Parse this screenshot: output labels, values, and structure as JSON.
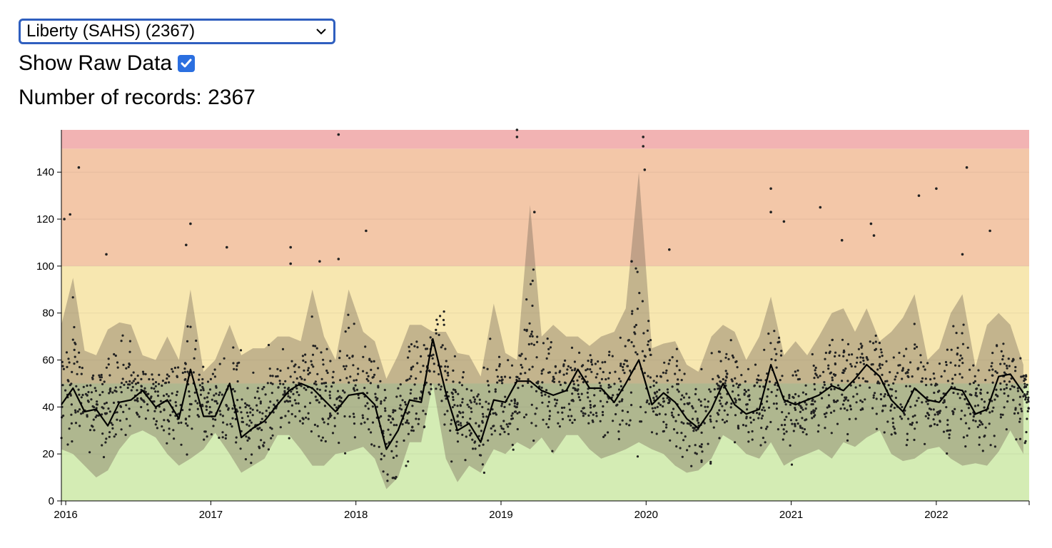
{
  "controls": {
    "site_select_value": "Liberty (SAHS) (2367)",
    "show_raw_label": "Show Raw Data",
    "show_raw_checked": true,
    "records_label": "Number of records:",
    "records_count": "2367"
  },
  "colors": {
    "band_green": "#d4ecb4",
    "band_yellow": "#f7e7b0",
    "band_orange": "#f3c7a8",
    "band_red": "#f2b3b3",
    "range_fill": "#7d6e5e",
    "line": "#000000",
    "points": "#222222",
    "select_border": "#2f5fbf",
    "checkbox": "#2b6fe0"
  },
  "icons": {
    "dropdown": "chevron-down-icon",
    "checkbox": "checkmark-icon"
  },
  "chart_data": {
    "type": "area",
    "xlabel": "",
    "ylabel": "",
    "xlim": [
      2015.97,
      2022.64
    ],
    "ylim": [
      0,
      158
    ],
    "xticks": [
      "2016",
      "2017",
      "2018",
      "2019",
      "2020",
      "2021",
      "2022"
    ],
    "yticks": [
      0,
      20,
      40,
      60,
      80,
      100,
      120,
      140
    ],
    "bands": [
      {
        "from": 0,
        "to": 50,
        "color": "#d4ecb4"
      },
      {
        "from": 50,
        "to": 100,
        "color": "#f7e7b0"
      },
      {
        "from": 100,
        "to": 150,
        "color": "#f3c7a8"
      },
      {
        "from": 150,
        "to": 158,
        "color": "#f2b3b3"
      }
    ],
    "series": [
      {
        "x": [
          2015.97,
          2016.05,
          2016.13,
          2016.21,
          2016.29,
          2016.37,
          2016.45,
          2016.53,
          2016.62,
          2016.7,
          2016.78,
          2016.86,
          2016.95,
          2017.03,
          2017.13,
          2017.21,
          2017.29,
          2017.37,
          2017.46,
          2017.54,
          2017.62,
          2017.7,
          2017.78,
          2017.86,
          2017.95,
          2018.05,
          2018.13,
          2018.21,
          2018.29,
          2018.37,
          2018.45,
          2018.53,
          2018.62,
          2018.7,
          2018.78,
          2018.86,
          2018.95,
          2019.03,
          2019.11,
          2019.2,
          2019.28,
          2019.36,
          2019.45,
          2019.53,
          2019.61,
          2019.69,
          2019.78,
          2019.86,
          2019.95,
          2020.04,
          2020.12,
          2020.2,
          2020.28,
          2020.36,
          2020.45,
          2020.53,
          2020.61,
          2020.69,
          2020.78,
          2020.86,
          2020.95,
          2021.03,
          2021.11,
          2021.19,
          2021.28,
          2021.36,
          2021.44,
          2021.52,
          2021.61,
          2021.69,
          2021.77,
          2021.85,
          2021.94,
          2022.02,
          2022.1,
          2022.18,
          2022.27,
          2022.35,
          2022.43,
          2022.51,
          2022.6
        ],
        "mean": [
          41,
          48,
          38,
          39,
          32,
          42,
          43,
          47,
          40,
          43,
          35,
          56,
          36,
          36,
          50,
          27,
          31,
          34,
          41,
          47,
          50,
          48,
          43,
          38,
          45,
          46,
          41,
          22,
          30,
          43,
          42,
          69,
          46,
          30,
          33,
          25,
          43,
          42,
          51,
          51,
          47,
          45,
          47,
          56,
          48,
          48,
          42,
          50,
          60,
          41,
          46,
          42,
          35,
          31,
          39,
          50,
          41,
          37,
          39,
          58,
          43,
          41,
          43,
          45,
          49,
          47,
          52,
          58,
          53,
          43,
          38,
          48,
          43,
          42,
          48,
          47,
          37,
          39,
          53,
          54,
          46
        ],
        "upper": [
          75,
          95,
          64,
          62,
          73,
          76,
          75,
          62,
          60,
          70,
          60,
          90,
          55,
          60,
          75,
          62,
          65,
          65,
          70,
          70,
          68,
          90,
          70,
          60,
          90,
          72,
          68,
          52,
          62,
          75,
          75,
          72,
          72,
          63,
          62,
          53,
          84,
          63,
          60,
          126,
          70,
          75,
          70,
          70,
          66,
          70,
          72,
          82,
          140,
          65,
          67,
          68,
          58,
          55,
          70,
          75,
          72,
          60,
          70,
          87,
          62,
          68,
          62,
          70,
          80,
          82,
          72,
          82,
          68,
          72,
          78,
          88,
          60,
          65,
          80,
          88,
          57,
          75,
          80,
          75,
          58
        ],
        "lower": [
          22,
          20,
          15,
          10,
          13,
          22,
          28,
          30,
          27,
          20,
          15,
          18,
          22,
          29,
          20,
          12,
          15,
          18,
          28,
          28,
          22,
          15,
          15,
          20,
          21,
          23,
          18,
          5,
          10,
          25,
          25,
          50,
          18,
          8,
          15,
          12,
          22,
          20,
          25,
          22,
          27,
          20,
          28,
          28,
          22,
          18,
          20,
          22,
          25,
          22,
          20,
          15,
          12,
          13,
          18,
          28,
          25,
          20,
          18,
          25,
          15,
          18,
          20,
          22,
          18,
          25,
          23,
          27,
          30,
          20,
          17,
          18,
          22,
          23,
          18,
          15,
          16,
          15,
          21,
          30,
          20
        ]
      }
    ],
    "outliers": [
      [
        2015.99,
        120
      ],
      [
        2016.03,
        122
      ],
      [
        2016.09,
        142
      ],
      [
        2016.28,
        105
      ],
      [
        2016.86,
        118
      ],
      [
        2016.83,
        109
      ],
      [
        2017.11,
        108
      ],
      [
        2017.55,
        108
      ],
      [
        2017.55,
        101
      ],
      [
        2017.75,
        102
      ],
      [
        2017.88,
        156
      ],
      [
        2017.88,
        103
      ],
      [
        2018.07,
        115
      ],
      [
        2019.11,
        158
      ],
      [
        2019.11,
        155
      ],
      [
        2019.23,
        123
      ],
      [
        2019.98,
        155
      ],
      [
        2019.98,
        151
      ],
      [
        2019.99,
        141
      ],
      [
        2019.9,
        102
      ],
      [
        2020.16,
        107
      ],
      [
        2020.86,
        133
      ],
      [
        2020.86,
        123
      ],
      [
        2020.95,
        119
      ],
      [
        2021.2,
        125
      ],
      [
        2021.35,
        111
      ],
      [
        2021.55,
        118
      ],
      [
        2021.57,
        113
      ],
      [
        2021.88,
        130
      ],
      [
        2022.0,
        133
      ],
      [
        2022.18,
        105
      ],
      [
        2022.21,
        142
      ],
      [
        2022.37,
        115
      ]
    ]
  }
}
